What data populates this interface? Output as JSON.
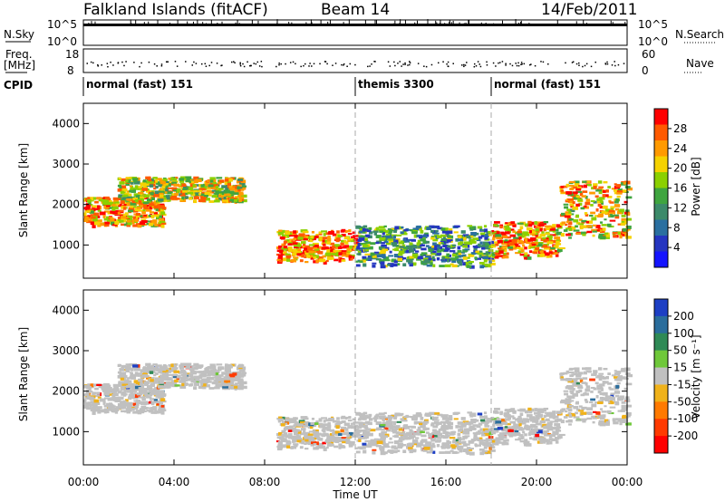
{
  "header": {
    "title": "Falkland Islands (fitACF)",
    "beam": "Beam 14",
    "date": "14/Feb/2011"
  },
  "strip_labels": {
    "nsky": "N.Sky",
    "nsky_hi": "10^5",
    "nsky_lo": "10^0",
    "nsearch": "N.Search",
    "nsearch_hi": "10^5",
    "nsearch_lo": "10^0",
    "freq_line1": "Freq.",
    "freq_line2": "[MHz]",
    "freq_hi": "18",
    "freq_lo": "8",
    "nave": "Nave",
    "nave_hi": "60",
    "nave_lo": "0",
    "cpid": "CPID"
  },
  "cpid_segments": [
    {
      "label": "normal (fast) 151",
      "start_hour": 0
    },
    {
      "label": "themis 3300",
      "start_hour": 12
    },
    {
      "label": "normal (fast) 151",
      "start_hour": 18
    }
  ],
  "panels": {
    "power": {
      "ylabel": "Slant Range [km]",
      "cbar_label": "Power [dB]",
      "cbar_ticks": [
        "28",
        "24",
        "20",
        "16",
        "12",
        "8",
        "4"
      ],
      "cbar_colors": [
        "#ff0000",
        "#ff5a00",
        "#ff9a00",
        "#f5d200",
        "#8bd000",
        "#3fa53f",
        "#3c8a6a",
        "#2a6fa0",
        "#2535c0",
        "#1414ff"
      ]
    },
    "velocity": {
      "ylabel": "Slant Range [km]",
      "cbar_label": "Velocity [m s⁻¹]",
      "cbar_ticks": [
        "200",
        "100",
        "50",
        "15",
        "-15",
        "-50",
        "-100",
        "-200"
      ],
      "cbar_colors": [
        "#1d3fc4",
        "#2a6d9c",
        "#2f8a56",
        "#6fc83a",
        "#c0c0c0",
        "#f0b21a",
        "#ff7a00",
        "#ff3a00",
        "#ff0000"
      ]
    }
  },
  "chart_data": {
    "type": "heatmap",
    "xlabel": "Time UT",
    "x_tick_labels": [
      "00:00",
      "04:00",
      "08:00",
      "12:00",
      "16:00",
      "20:00",
      "00:00"
    ],
    "xlim_hours": [
      0,
      24
    ],
    "ylim_km": [
      180,
      4500
    ],
    "y_tick_labels": [
      "1000",
      "2000",
      "3000",
      "4000"
    ],
    "y_ticks_km": [
      1000,
      2000,
      3000,
      4000
    ],
    "grid": "dashed vertical lines at CPID changes (12:00, 18:00)",
    "power_bands_dB": [
      4,
      8,
      12,
      16,
      20,
      24,
      28
    ],
    "velocity_bands_ms": [
      -200,
      -100,
      -50,
      -15,
      15,
      50,
      100,
      200
    ],
    "echo_regions": [
      {
        "t_start": 0.0,
        "t_end": 3.5,
        "range_low_km": 1500,
        "range_high_km": 2200,
        "power_dB": 22
      },
      {
        "t_start": 1.5,
        "t_end": 7.0,
        "range_low_km": 2100,
        "range_high_km": 2700,
        "power_dB": 18
      },
      {
        "t_start": 8.5,
        "t_end": 12.0,
        "range_low_km": 600,
        "range_high_km": 1400,
        "power_dB": 24
      },
      {
        "t_start": 12.0,
        "t_end": 18.0,
        "range_low_km": 500,
        "range_high_km": 1500,
        "power_dB": 10
      },
      {
        "t_start": 18.0,
        "t_end": 21.0,
        "range_low_km": 700,
        "range_high_km": 1600,
        "power_dB": 22
      },
      {
        "t_start": 21.0,
        "t_end": 24.0,
        "range_low_km": 1200,
        "range_high_km": 2600,
        "power_dB": 20
      }
    ]
  }
}
